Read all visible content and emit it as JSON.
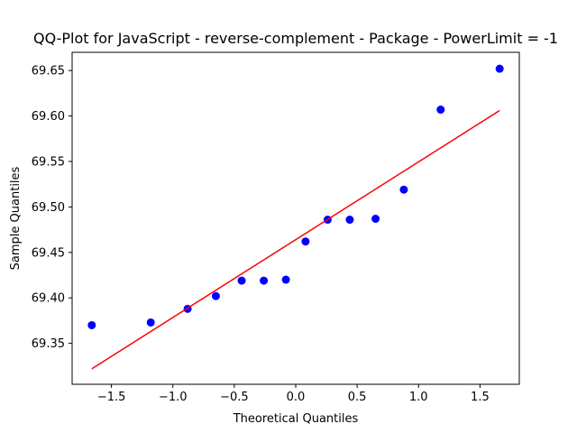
{
  "chart_data": {
    "type": "scatter",
    "title": "QQ-Plot for JavaScript - reverse-complement - Package - PowerLimit = -1",
    "xlabel": "Theoretical Quantiles",
    "ylabel": "Sample Quantiles",
    "xlim": [
      -1.82,
      1.82
    ],
    "ylim": [
      69.305,
      69.67
    ],
    "xticks": [
      -1.5,
      -1.0,
      -0.5,
      0.0,
      0.5,
      1.0,
      1.5
    ],
    "xtick_labels": [
      "−1.5",
      "−1.0",
      "−0.5",
      "0.0",
      "0.5",
      "1.0",
      "1.5"
    ],
    "yticks": [
      69.35,
      69.4,
      69.45,
      69.5,
      69.55,
      69.6,
      69.65
    ],
    "ytick_labels": [
      "69.35",
      "69.40",
      "69.45",
      "69.50",
      "69.55",
      "69.60",
      "69.65"
    ],
    "grid": false,
    "series": [
      {
        "kind": "points",
        "color": "#0000ff",
        "x": [
          -1.66,
          -1.18,
          -0.88,
          -0.65,
          -0.44,
          -0.26,
          -0.08,
          0.08,
          0.26,
          0.44,
          0.65,
          0.88,
          1.18,
          1.66
        ],
        "y": [
          69.37,
          69.373,
          69.388,
          69.402,
          69.419,
          69.419,
          69.42,
          69.462,
          69.486,
          69.486,
          69.487,
          69.519,
          69.607,
          69.652
        ]
      },
      {
        "kind": "line",
        "color": "#ff0000",
        "x": [
          -1.66,
          1.66
        ],
        "y": [
          69.322,
          69.606
        ]
      }
    ]
  }
}
